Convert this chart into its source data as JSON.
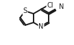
{
  "bg_color": "#ffffff",
  "line_color": "#1a1a1a",
  "lw": 1.4,
  "fs": 7.0,
  "xlim": [
    0,
    1
  ],
  "ylim": [
    0,
    1
  ],
  "figsize": [
    1.08,
    0.66
  ],
  "dpi": 100
}
